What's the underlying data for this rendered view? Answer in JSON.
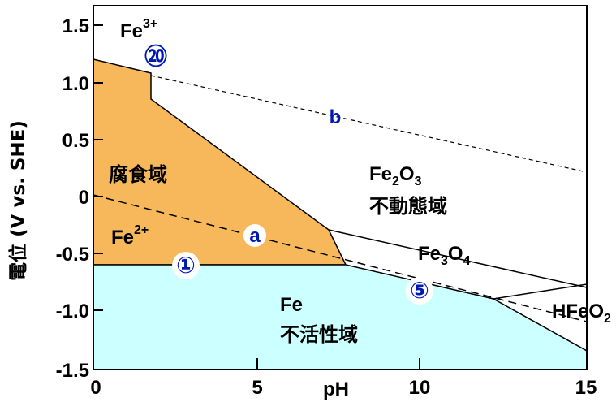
{
  "colors": {
    "corrosion": "#f7b85c",
    "immunity": "#ccffff",
    "line": "#000000",
    "marker": "#0018b4"
  },
  "axes": {
    "y_label": "電位 (V vs. SHE)",
    "x_label": "pH",
    "y_ticks": [
      "1.5",
      "1.0",
      "0.5",
      "0",
      "-0.5",
      "-1.0",
      "-1.5"
    ],
    "x_ticks": [
      "0",
      "5",
      "10",
      "15"
    ]
  },
  "regions": {
    "corrosion": "腐食域",
    "passive": "不動態域",
    "immunity": "不活性域"
  },
  "species": {
    "fe3": {
      "base": "Fe",
      "sup": "3+"
    },
    "fe2": {
      "base": "Fe",
      "sup": "2+"
    },
    "fe2o3": {
      "p1": "Fe",
      "s1": "2",
      "p2": "O",
      "s2": "3"
    },
    "fe3o4": {
      "p1": "Fe",
      "s1": "3",
      "p2": "O",
      "s2": "4"
    },
    "hfeo2": {
      "p1": "HFeO",
      "s1": "2"
    },
    "fe": "Fe"
  },
  "lines": {
    "a": "a",
    "b": "b"
  },
  "markers": {
    "m1": "①",
    "m5": "⑤",
    "m20": "⑳"
  }
}
